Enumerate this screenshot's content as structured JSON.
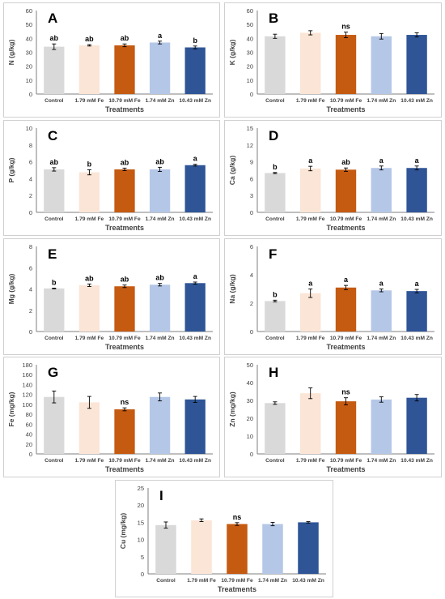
{
  "colors": [
    "#d9d9d9",
    "#fbe5d6",
    "#c55a11",
    "#b4c7e7",
    "#2f5597"
  ],
  "chart_data": [
    {
      "panel": "A",
      "type": "bar",
      "categories": [
        "Control",
        "1.79 mM Fe",
        "10.79 mM Fe",
        "1.74 mM Zn",
        "10.43 mM Zn"
      ],
      "values": [
        34,
        35,
        35,
        37,
        33.5
      ],
      "errors": [
        2,
        0.5,
        1,
        1,
        1
      ],
      "letters": [
        "ab",
        "ab",
        "ab",
        "a",
        "b"
      ],
      "xlabel": "Treatments",
      "ylabel": "N (g/kg)",
      "ylim": [
        0,
        60
      ],
      "yticks": [
        0,
        10,
        20,
        30,
        40,
        50,
        60
      ]
    },
    {
      "panel": "B",
      "type": "bar",
      "categories": [
        "Control",
        "1.79 mM Fe",
        "10.79 mM Fe",
        "1.74 mM Zn",
        "10.43 mM Zn"
      ],
      "values": [
        41.5,
        44,
        42.5,
        41.5,
        42.5
      ],
      "errors": [
        1.5,
        1.5,
        2,
        2,
        1.5
      ],
      "letters": [
        "",
        "",
        "ns",
        "",
        ""
      ],
      "xlabel": "Treatments",
      "ylabel": "K (g/kg)",
      "ylim": [
        0,
        60
      ],
      "yticks": [
        0,
        10,
        20,
        30,
        40,
        50,
        60
      ]
    },
    {
      "panel": "C",
      "type": "bar",
      "categories": [
        "Control",
        "1.79 mM Fe",
        "10.79 mM Fe",
        "1.74 mM Zn",
        "10.43 mM Zn"
      ],
      "values": [
        5.1,
        4.75,
        5.1,
        5.1,
        5.6
      ],
      "errors": [
        0.2,
        0.3,
        0.15,
        0.25,
        0.1
      ],
      "letters": [
        "ab",
        "b",
        "ab",
        "ab",
        "a"
      ],
      "xlabel": "Treatments",
      "ylabel": "P (g/kg)",
      "ylim": [
        0,
        10
      ],
      "yticks": [
        0,
        2,
        4,
        6,
        8,
        10
      ]
    },
    {
      "panel": "D",
      "type": "bar",
      "categories": [
        "Control",
        "1.79 mM Fe",
        "10.79 mM Fe",
        "1.74 mM Zn",
        "10.43 mM Zn"
      ],
      "values": [
        7,
        7.8,
        7.6,
        7.9,
        7.9
      ],
      "errors": [
        0.1,
        0.4,
        0.3,
        0.35,
        0.35
      ],
      "letters": [
        "b",
        "a",
        "ab",
        "a",
        "a"
      ],
      "xlabel": "Treatments",
      "ylabel": "Ca (g/kg)",
      "ylim": [
        0,
        15
      ],
      "yticks": [
        0,
        3,
        6,
        9,
        12,
        15
      ]
    },
    {
      "panel": "E",
      "type": "bar",
      "categories": [
        "Control",
        "1.79 mM Fe",
        "10.79 mM Fe",
        "1.74 mM Zn",
        "10.43 mM Zn"
      ],
      "values": [
        4.05,
        4.35,
        4.25,
        4.4,
        4.55
      ],
      "errors": [
        0.03,
        0.12,
        0.12,
        0.12,
        0.1
      ],
      "letters": [
        "b",
        "ab",
        "ab",
        "ab",
        "a"
      ],
      "xlabel": "Treatments",
      "ylabel": "Mg (g/kg)",
      "ylim": [
        0,
        8
      ],
      "yticks": [
        0,
        2,
        4,
        6,
        8
      ]
    },
    {
      "panel": "F",
      "type": "bar",
      "categories": [
        "Control",
        "1.79 mM Fe",
        "10.79 mM Fe",
        "1.74 mM Zn",
        "10.43 mM Zn"
      ],
      "values": [
        2.15,
        2.7,
        3.1,
        2.9,
        2.85
      ],
      "errors": [
        0.06,
        0.3,
        0.15,
        0.1,
        0.12
      ],
      "letters": [
        "b",
        "a",
        "a",
        "a",
        "a"
      ],
      "xlabel": "Treatments",
      "ylabel": "Na (g/kg)",
      "ylim": [
        0,
        6
      ],
      "yticks": [
        0,
        2,
        4,
        6
      ]
    },
    {
      "panel": "G",
      "type": "bar",
      "categories": [
        "Control",
        "1.79 mM Fe",
        "10.79 mM Fe",
        "1.74 mM Zn",
        "10.43 mM Zn"
      ],
      "values": [
        115,
        104,
        90,
        115,
        110
      ],
      "errors": [
        12,
        12,
        3,
        8,
        6
      ],
      "letters": [
        "",
        "",
        "ns",
        "",
        ""
      ],
      "xlabel": "Treatments",
      "ylabel": "Fe (mg/kg)",
      "ylim": [
        0,
        180
      ],
      "yticks": [
        0,
        20,
        40,
        60,
        80,
        100,
        120,
        140,
        160,
        180
      ]
    },
    {
      "panel": "H",
      "type": "bar",
      "categories": [
        "Control",
        "1.79 mM Fe",
        "10.79 mM Fe",
        "1.74 mM Zn",
        "10.43 mM Zn"
      ],
      "values": [
        28.5,
        34,
        29.5,
        30.5,
        31.5
      ],
      "errors": [
        0.7,
        3,
        2,
        1.5,
        1.8
      ],
      "letters": [
        "",
        "",
        "ns",
        "",
        ""
      ],
      "xlabel": "Treatments",
      "ylabel": "Zn (mg/kg)",
      "ylim": [
        0,
        50
      ],
      "yticks": [
        0,
        10,
        20,
        30,
        40,
        50
      ]
    },
    {
      "panel": "I",
      "type": "bar",
      "categories": [
        "Control",
        "1.79 mM Fe",
        "10.79 mM Fe",
        "1.74 mM Zn",
        "10.43 mM Zn"
      ],
      "values": [
        14.2,
        15.6,
        14.5,
        14.5,
        15
      ],
      "errors": [
        0.9,
        0.4,
        0.4,
        0.5,
        0.2
      ],
      "letters": [
        "",
        "",
        "ns",
        "",
        ""
      ],
      "xlabel": "Treatments",
      "ylabel": "Cu (mg/kg)",
      "ylim": [
        0,
        25
      ],
      "yticks": [
        0,
        5,
        10,
        15,
        20,
        25
      ]
    }
  ]
}
